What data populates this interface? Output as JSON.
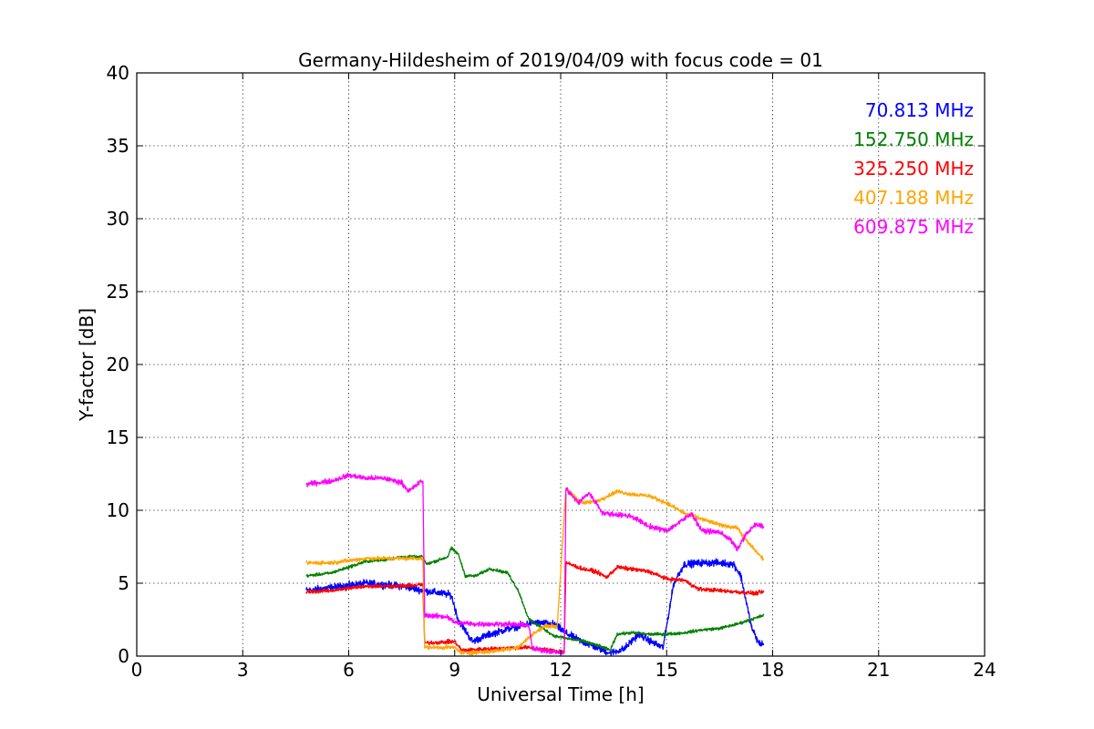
{
  "chart_data": {
    "type": "line",
    "title": "Germany-Hildesheim of 2019/04/09 with focus code = 01",
    "xlabel": "Universal Time [h]",
    "ylabel": "Y-factor [dB]",
    "xlim": [
      0,
      24
    ],
    "ylim": [
      0,
      40
    ],
    "xticks": [
      0,
      3,
      6,
      9,
      12,
      15,
      18,
      21,
      24
    ],
    "yticks": [
      0,
      5,
      10,
      15,
      20,
      25,
      30,
      35,
      40
    ],
    "xtick_labels": [
      "0",
      "3",
      "6",
      "9",
      "12",
      "15",
      "18",
      "21",
      "24"
    ],
    "ytick_labels": [
      "0",
      "5",
      "10",
      "15",
      "20",
      "25",
      "30",
      "35",
      "40"
    ],
    "grid": true,
    "legend_position": "top-right",
    "series": [
      {
        "name": "70.813 MHz",
        "color": "#0000ff",
        "noise": 0.35,
        "points": [
          [
            4.8,
            4.5
          ],
          [
            5.5,
            4.7
          ],
          [
            6.5,
            5.0
          ],
          [
            7.5,
            4.8
          ],
          [
            8.1,
            4.5
          ],
          [
            8.9,
            4.2
          ],
          [
            9.1,
            2.5
          ],
          [
            9.5,
            1.0
          ],
          [
            10.0,
            1.5
          ],
          [
            10.7,
            2.0
          ],
          [
            11.2,
            2.3
          ],
          [
            11.8,
            2.2
          ],
          [
            12.2,
            1.5
          ],
          [
            12.6,
            1.0
          ],
          [
            13.0,
            0.6
          ],
          [
            13.4,
            0.2
          ],
          [
            13.8,
            0.5
          ],
          [
            14.2,
            1.5
          ],
          [
            14.7,
            0.8
          ],
          [
            14.9,
            0.6
          ],
          [
            15.2,
            5.0
          ],
          [
            15.5,
            6.3
          ],
          [
            16.0,
            6.4
          ],
          [
            16.5,
            6.4
          ],
          [
            16.9,
            6.3
          ],
          [
            17.1,
            5.5
          ],
          [
            17.4,
            2.0
          ],
          [
            17.6,
            0.9
          ],
          [
            17.75,
            0.8
          ]
        ]
      },
      {
        "name": "152.750 MHz",
        "color": "#008000",
        "noise": 0.15,
        "points": [
          [
            4.8,
            5.5
          ],
          [
            5.5,
            5.7
          ],
          [
            6.0,
            6.1
          ],
          [
            6.5,
            6.5
          ],
          [
            7.0,
            6.6
          ],
          [
            7.5,
            6.8
          ],
          [
            8.1,
            6.8
          ],
          [
            8.2,
            6.3
          ],
          [
            8.8,
            6.8
          ],
          [
            8.9,
            7.4
          ],
          [
            9.1,
            7.0
          ],
          [
            9.3,
            5.5
          ],
          [
            9.6,
            5.5
          ],
          [
            10.0,
            6.0
          ],
          [
            10.5,
            5.7
          ],
          [
            10.8,
            4.5
          ],
          [
            11.1,
            2.5
          ],
          [
            11.5,
            1.9
          ],
          [
            11.8,
            1.4
          ],
          [
            12.2,
            1.2
          ],
          [
            12.7,
            1.0
          ],
          [
            13.2,
            0.6
          ],
          [
            13.4,
            0.4
          ],
          [
            13.6,
            1.5
          ],
          [
            14.0,
            1.6
          ],
          [
            14.5,
            1.5
          ],
          [
            15.0,
            1.5
          ],
          [
            15.5,
            1.6
          ],
          [
            16.0,
            1.8
          ],
          [
            16.5,
            1.9
          ],
          [
            17.0,
            2.2
          ],
          [
            17.5,
            2.6
          ],
          [
            17.75,
            2.8
          ]
        ]
      },
      {
        "name": "325.250 MHz",
        "color": "#ff0000",
        "noise": 0.2,
        "points": [
          [
            4.8,
            4.4
          ],
          [
            5.5,
            4.5
          ],
          [
            6.5,
            4.8
          ],
          [
            7.5,
            4.8
          ],
          [
            8.1,
            4.9
          ],
          [
            8.15,
            0.9
          ],
          [
            9.0,
            1.0
          ],
          [
            9.2,
            0.4
          ],
          [
            10.0,
            0.5
          ],
          [
            11.0,
            0.6
          ],
          [
            12.1,
            0.3
          ],
          [
            12.15,
            6.4
          ],
          [
            12.6,
            6.0
          ],
          [
            13.0,
            5.8
          ],
          [
            13.3,
            5.4
          ],
          [
            13.6,
            6.1
          ],
          [
            14.5,
            5.8
          ],
          [
            15.0,
            5.3
          ],
          [
            15.5,
            5.2
          ],
          [
            15.9,
            4.6
          ],
          [
            16.5,
            4.5
          ],
          [
            17.0,
            4.4
          ],
          [
            17.5,
            4.3
          ],
          [
            17.75,
            4.4
          ]
        ]
      },
      {
        "name": "407.188 MHz",
        "color": "#ffa500",
        "noise": 0.2,
        "points": [
          [
            4.8,
            6.4
          ],
          [
            5.5,
            6.4
          ],
          [
            6.5,
            6.7
          ],
          [
            7.5,
            6.7
          ],
          [
            8.1,
            6.7
          ],
          [
            8.15,
            0.6
          ],
          [
            8.7,
            0.6
          ],
          [
            9.0,
            0.6
          ],
          [
            9.2,
            0.2
          ],
          [
            10.0,
            0.3
          ],
          [
            10.8,
            0.6
          ],
          [
            11.2,
            1.5
          ],
          [
            11.6,
            2.1
          ],
          [
            11.9,
            2.0
          ],
          [
            12.15,
            11.5
          ],
          [
            12.6,
            10.5
          ],
          [
            13.0,
            10.6
          ],
          [
            13.6,
            11.3
          ],
          [
            14.0,
            11.1
          ],
          [
            14.5,
            11.0
          ],
          [
            15.0,
            10.5
          ],
          [
            15.5,
            9.8
          ],
          [
            16.0,
            9.4
          ],
          [
            16.5,
            9.0
          ],
          [
            17.0,
            8.8
          ],
          [
            17.3,
            7.8
          ],
          [
            17.75,
            6.6
          ]
        ]
      },
      {
        "name": "609.875 MHz",
        "color": "#ff00ff",
        "noise": 0.25,
        "points": [
          [
            4.8,
            11.8
          ],
          [
            5.5,
            12.0
          ],
          [
            6.0,
            12.4
          ],
          [
            6.5,
            12.2
          ],
          [
            7.0,
            12.2
          ],
          [
            7.5,
            11.9
          ],
          [
            7.7,
            11.3
          ],
          [
            8.0,
            11.9
          ],
          [
            8.1,
            12.0
          ],
          [
            8.15,
            2.8
          ],
          [
            8.8,
            2.7
          ],
          [
            9.0,
            2.3
          ],
          [
            9.6,
            2.2
          ],
          [
            10.5,
            2.2
          ],
          [
            11.1,
            2.1
          ],
          [
            11.2,
            0.5
          ],
          [
            12.1,
            0.2
          ],
          [
            12.15,
            11.5
          ],
          [
            12.5,
            10.5
          ],
          [
            12.8,
            11.2
          ],
          [
            13.2,
            9.8
          ],
          [
            14.0,
            9.6
          ],
          [
            14.5,
            8.9
          ],
          [
            15.0,
            8.6
          ],
          [
            15.5,
            9.4
          ],
          [
            15.7,
            9.8
          ],
          [
            16.0,
            8.6
          ],
          [
            16.5,
            8.5
          ],
          [
            16.8,
            8.0
          ],
          [
            17.0,
            7.3
          ],
          [
            17.2,
            8.2
          ],
          [
            17.5,
            9.0
          ],
          [
            17.75,
            8.9
          ]
        ]
      }
    ]
  }
}
